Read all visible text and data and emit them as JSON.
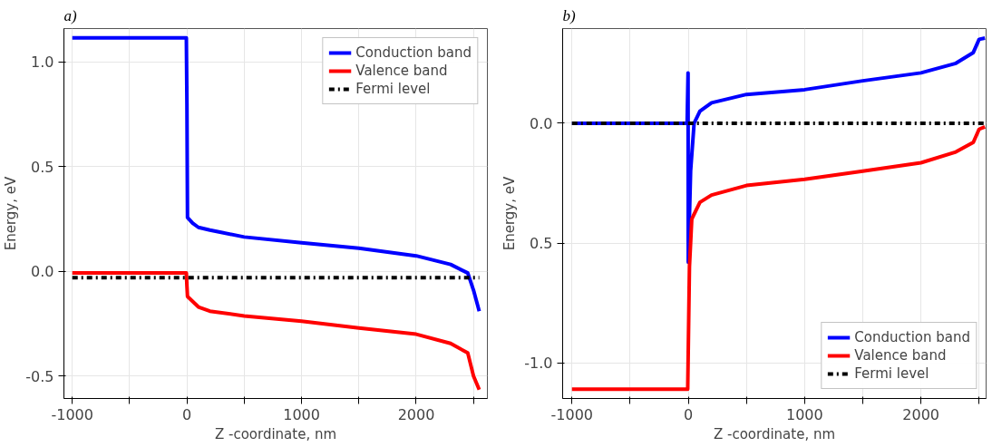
{
  "chart_data": [
    {
      "type": "line",
      "title": "a)",
      "xlabel": "Z -coordinate, nm",
      "ylabel": "Energy, eV",
      "xlim": [
        -1073,
        2621
      ],
      "ylim": [
        -0.607,
        1.159
      ],
      "xticks": [
        -1000,
        {
          "value": -500,
          "label": null
        },
        0,
        {
          "value": 500,
          "label": null
        },
        1000,
        {
          "value": 1500,
          "label": null
        },
        2000,
        {
          "value": 2500,
          "label": null
        }
      ],
      "yticks": [
        {
          "value": -0.5,
          "label": "-0.5"
        },
        {
          "value": 0,
          "label": "0.0"
        },
        0.5,
        {
          "value": 1,
          "label": "1.0"
        }
      ],
      "grid": true,
      "legend": "top right",
      "marker": "none",
      "series": [
        {
          "name": "Conduction band",
          "color": "#0000ff",
          "x": [
            -1000,
            -5,
            0,
            5,
            50,
            100,
            200,
            500,
            1000,
            1500,
            2000,
            2300,
            2450,
            2500,
            2550
          ],
          "values": [
            1.115,
            1.115,
            0.8,
            0.257,
            0.23,
            0.21,
            0.197,
            0.164,
            0.136,
            0.11,
            0.074,
            0.033,
            -0.008,
            -0.09,
            -0.19
          ]
        },
        {
          "name": "Valence band",
          "color": "#ff0000",
          "x": [
            -1000,
            -5,
            0,
            5,
            100,
            200,
            500,
            1000,
            1500,
            2000,
            2300,
            2450,
            2500,
            2550
          ],
          "values": [
            -0.008,
            -0.008,
            -0.07,
            -0.12,
            -0.17,
            -0.19,
            -0.213,
            -0.238,
            -0.27,
            -0.3,
            -0.344,
            -0.39,
            -0.5,
            -0.565
          ]
        },
        {
          "name": "Fermi level",
          "color": "#000000",
          "line_style": "dashdot",
          "x": [
            -1000,
            2550
          ],
          "values": [
            -0.03,
            -0.03
          ]
        }
      ]
    },
    {
      "type": "line",
      "title": "b)",
      "xlabel": "Z -coordinate, nm",
      "ylabel": "Energy, eV",
      "xlim": [
        -1080,
        2560
      ],
      "ylim": [
        -1.149,
        0.395
      ],
      "xticks": [
        -1000,
        {
          "value": -500,
          "label": null
        },
        0,
        {
          "value": 500,
          "label": null
        },
        1000,
        {
          "value": 1500,
          "label": null
        },
        2000,
        {
          "value": 2500,
          "label": null
        }
      ],
      "yticks": [
        {
          "value": -1,
          "label": "-1.0"
        },
        {
          "value": -0.5,
          "label": "0.5"
        },
        {
          "value": 0,
          "label": "0.0"
        }
      ],
      "grid": true,
      "legend": "bottom right",
      "marker": "none",
      "series": [
        {
          "name": "Conduction band",
          "color": "#0000ff",
          "x": [
            -1000,
            -10,
            -2,
            0,
            20,
            50,
            100,
            200,
            500,
            1000,
            1500,
            2000,
            2300,
            2450,
            2500,
            2550
          ],
          "values": [
            0.0,
            0.0,
            0.21,
            -0.58,
            -0.2,
            0.0,
            0.05,
            0.085,
            0.12,
            0.14,
            0.177,
            0.21,
            0.25,
            0.295,
            0.35,
            0.355
          ]
        },
        {
          "name": "Valence band",
          "color": "#ff0000",
          "x": [
            -1000,
            -5,
            10,
            30,
            100,
            200,
            500,
            1000,
            1500,
            2000,
            2300,
            2450,
            2500,
            2550
          ],
          "values": [
            -1.11,
            -1.11,
            -0.6,
            -0.4,
            -0.33,
            -0.3,
            -0.26,
            -0.234,
            -0.2,
            -0.165,
            -0.12,
            -0.08,
            -0.025,
            -0.015
          ]
        },
        {
          "name": "Fermi level",
          "color": "#000000",
          "line_style": "dashdot",
          "x": [
            -1000,
            2550
          ],
          "values": [
            0.0,
            0.0
          ]
        }
      ]
    }
  ]
}
